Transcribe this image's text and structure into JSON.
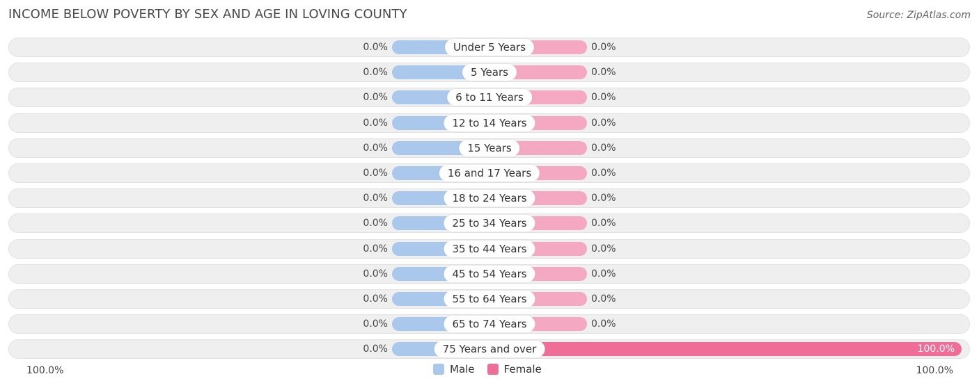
{
  "title": "INCOME BELOW POVERTY BY SEX AND AGE IN LOVING COUNTY",
  "source": "Source: ZipAtlas.com",
  "colors": {
    "male": "#a9c8ec",
    "female": "#f5a8c1",
    "female_full": "#f06d98"
  },
  "legend": {
    "male": "Male",
    "female": "Female"
  },
  "axis": {
    "left": "100.0%",
    "right": "100.0%"
  },
  "chart_data": {
    "type": "bar",
    "orientation": "horizontal-diverging",
    "categories": [
      "Under 5 Years",
      "5 Years",
      "6 to 11 Years",
      "12 to 14 Years",
      "15 Years",
      "16 and 17 Years",
      "18 to 24 Years",
      "25 to 34 Years",
      "35 to 44 Years",
      "45 to 54 Years",
      "55 to 64 Years",
      "65 to 74 Years",
      "75 Years and over"
    ],
    "series": [
      {
        "name": "Male",
        "values": [
          0,
          0,
          0,
          0,
          0,
          0,
          0,
          0,
          0,
          0,
          0,
          0,
          0
        ],
        "labels": [
          "0.0%",
          "0.0%",
          "0.0%",
          "0.0%",
          "0.0%",
          "0.0%",
          "0.0%",
          "0.0%",
          "0.0%",
          "0.0%",
          "0.0%",
          "0.0%",
          "0.0%"
        ]
      },
      {
        "name": "Female",
        "values": [
          0,
          0,
          0,
          0,
          0,
          0,
          0,
          0,
          0,
          0,
          0,
          0,
          100
        ],
        "labels": [
          "0.0%",
          "0.0%",
          "0.0%",
          "0.0%",
          "0.0%",
          "0.0%",
          "0.0%",
          "0.0%",
          "0.0%",
          "0.0%",
          "0.0%",
          "0.0%",
          "100.0%"
        ]
      }
    ],
    "xlim": [
      -100,
      100
    ],
    "legend_position": "bottom-center"
  }
}
